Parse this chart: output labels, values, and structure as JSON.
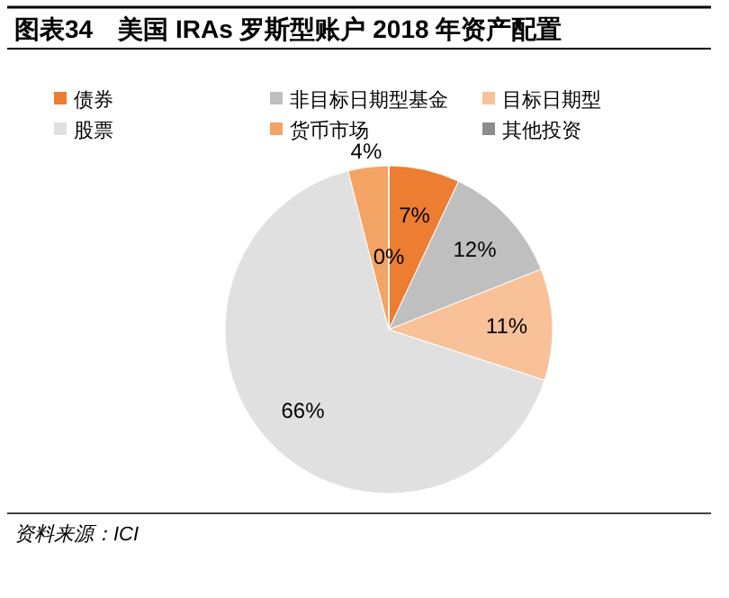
{
  "chart_data": {
    "type": "pie",
    "title": "图表34　美国 IRAs 罗斯型账户 2018 年资产配置",
    "categories": [
      "债券",
      "非目标日期型基金",
      "目标日期型",
      "股票",
      "货币市场",
      "其他投资"
    ],
    "values": [
      7,
      12,
      11,
      66,
      4,
      0
    ],
    "colors": [
      "#ed7d31",
      "#bfbfbf",
      "#f8c197",
      "#e0e0e0",
      "#f3a364",
      "#8c8c8c"
    ],
    "value_labels": [
      "7%",
      "12%",
      "11%",
      "66%",
      "4%",
      "0%"
    ],
    "legend": "top",
    "annotations": [
      "资料来源：ICI"
    ]
  }
}
